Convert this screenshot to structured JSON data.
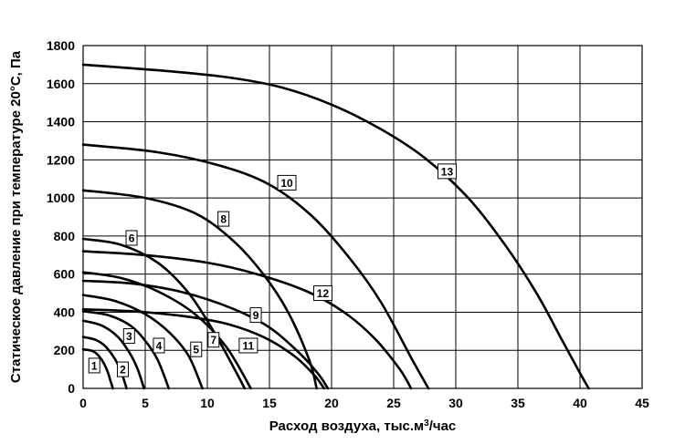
{
  "chart_data": {
    "type": "line",
    "xlabel": "Расход воздуха, тыс.м³/час",
    "xlabel_main": "Расход воздуха, тыс.м",
    "xlabel_sup": "3",
    "xlabel_tail": "/час",
    "ylabel": "Статическое давление при температуре 20°С, Па",
    "xlim": [
      0,
      45
    ],
    "ylim": [
      0,
      1800
    ],
    "xticks": [
      0,
      5,
      10,
      15,
      20,
      25,
      30,
      35,
      40,
      45
    ],
    "yticks": [
      0,
      200,
      400,
      600,
      800,
      1000,
      1200,
      1400,
      1600,
      1800
    ],
    "grid": true,
    "series": [
      {
        "name": "1",
        "label_at": [
          0.9,
          120
        ],
        "points": [
          [
            0,
            205
          ],
          [
            0.8,
            195
          ],
          [
            1.4,
            160
          ],
          [
            1.9,
            100
          ],
          [
            2.2,
            40
          ],
          [
            2.4,
            0
          ]
        ]
      },
      {
        "name": "2",
        "label_at": [
          3.2,
          100
        ],
        "points": [
          [
            0,
            270
          ],
          [
            1.0,
            255
          ],
          [
            1.8,
            220
          ],
          [
            2.6,
            150
          ],
          [
            3.1,
            80
          ],
          [
            3.5,
            0
          ]
        ]
      },
      {
        "name": "3",
        "label_at": [
          3.7,
          275
        ],
        "points": [
          [
            0,
            355
          ],
          [
            1.5,
            330
          ],
          [
            2.8,
            270
          ],
          [
            3.8,
            180
          ],
          [
            4.4,
            100
          ],
          [
            4.9,
            0
          ]
        ]
      },
      {
        "name": "4",
        "label_at": [
          6.1,
          225
        ],
        "points": [
          [
            0,
            405
          ],
          [
            2.0,
            385
          ],
          [
            3.8,
            330
          ],
          [
            5.0,
            250
          ],
          [
            6.0,
            150
          ],
          [
            6.9,
            0
          ]
        ]
      },
      {
        "name": "5",
        "label_at": [
          9.1,
          205
        ],
        "points": [
          [
            0,
            490
          ],
          [
            2.5,
            460
          ],
          [
            5.0,
            390
          ],
          [
            7.0,
            290
          ],
          [
            8.5,
            170
          ],
          [
            9.6,
            0
          ]
        ]
      },
      {
        "name": "6",
        "label_at": [
          3.9,
          790
        ],
        "points": [
          [
            0,
            785
          ],
          [
            3.0,
            755
          ],
          [
            6.0,
            660
          ],
          [
            8.5,
            500
          ],
          [
            10.5,
            300
          ],
          [
            12.2,
            100
          ],
          [
            13.0,
            0
          ]
        ]
      },
      {
        "name": "7",
        "label_at": [
          10.5,
          255
        ],
        "points": [
          [
            0,
            610
          ],
          [
            3.0,
            580
          ],
          [
            6.0,
            510
          ],
          [
            9.0,
            390
          ],
          [
            11.5,
            220
          ],
          [
            13.5,
            0
          ]
        ]
      },
      {
        "name": "8",
        "label_at": [
          11.3,
          890
        ],
        "points": [
          [
            0,
            1040
          ],
          [
            5.0,
            1000
          ],
          [
            9.0,
            920
          ],
          [
            12.0,
            780
          ],
          [
            14.5,
            600
          ],
          [
            16.5,
            400
          ],
          [
            18.2,
            150
          ],
          [
            18.8,
            0
          ]
        ]
      },
      {
        "name": "9",
        "label_at": [
          13.9,
          385
        ],
        "points": [
          [
            0,
            415
          ],
          [
            4.0,
            405
          ],
          [
            8.0,
            380
          ],
          [
            11.5,
            340
          ],
          [
            14.5,
            270
          ],
          [
            17.0,
            170
          ],
          [
            18.6,
            70
          ],
          [
            19.4,
            0
          ]
        ]
      },
      {
        "name": "10",
        "label_at": [
          16.4,
          1080
        ],
        "points": [
          [
            0,
            1280
          ],
          [
            6.0,
            1240
          ],
          [
            11.0,
            1170
          ],
          [
            15.0,
            1070
          ],
          [
            18.5,
            900
          ],
          [
            21.5,
            680
          ],
          [
            24.0,
            450
          ],
          [
            26.5,
            150
          ],
          [
            27.8,
            0
          ]
        ]
      },
      {
        "name": "11",
        "label_at": [
          13.3,
          225
        ],
        "points": [
          [
            0,
            565
          ],
          [
            4.0,
            550
          ],
          [
            8.0,
            505
          ],
          [
            12.0,
            420
          ],
          [
            15.0,
            320
          ],
          [
            17.5,
            180
          ],
          [
            19.0,
            70
          ],
          [
            19.7,
            0
          ]
        ]
      },
      {
        "name": "12",
        "label_at": [
          19.3,
          500
        ],
        "points": [
          [
            0,
            720
          ],
          [
            5.0,
            700
          ],
          [
            10.0,
            660
          ],
          [
            14.0,
            600
          ],
          [
            18.0,
            510
          ],
          [
            21.0,
            400
          ],
          [
            23.5,
            260
          ],
          [
            25.5,
            100
          ],
          [
            26.4,
            0
          ]
        ]
      },
      {
        "name": "13",
        "label_at": [
          29.3,
          1140
        ],
        "points": [
          [
            0,
            1700
          ],
          [
            7.0,
            1665
          ],
          [
            12.0,
            1630
          ],
          [
            16.0,
            1580
          ],
          [
            20.0,
            1490
          ],
          [
            24.0,
            1360
          ],
          [
            27.5,
            1210
          ],
          [
            31.0,
            1000
          ],
          [
            34.0,
            750
          ],
          [
            36.5,
            500
          ],
          [
            38.5,
            260
          ],
          [
            40.0,
            80
          ],
          [
            40.7,
            0
          ]
        ]
      }
    ]
  }
}
